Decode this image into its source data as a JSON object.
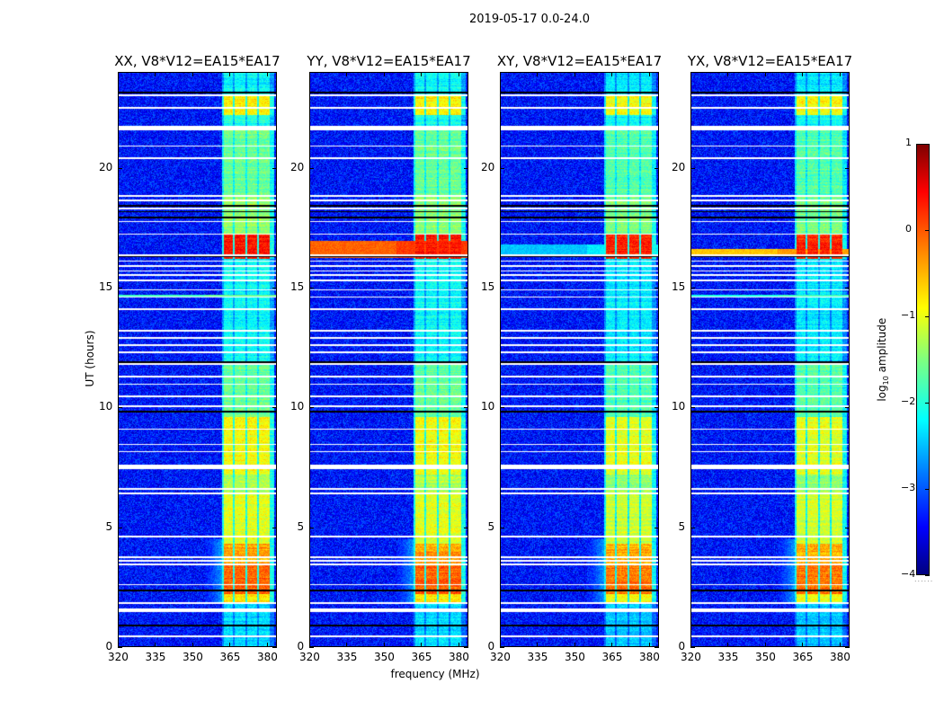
{
  "chart_data": {
    "type": "heatmap",
    "title": "2019-05-17 0.0-24.0",
    "xlabel": "frequency (MHz)",
    "ylabel": "UT (hours)",
    "xlim": [
      320,
      384
    ],
    "ylim": [
      0,
      24
    ],
    "xticks": [
      320,
      335,
      350,
      365,
      380
    ],
    "yticks": [
      0,
      5,
      10,
      15,
      20
    ],
    "colorbar": {
      "label_main": "log",
      "label_sub": "10",
      "label_rest": " amplitude",
      "vmin": -4,
      "vmax": 1,
      "ticks": [
        1,
        0,
        -1,
        -2,
        -3,
        -4
      ],
      "colormap": "jet"
    },
    "background_level": -3.3,
    "signal_band_mhz": [
      362,
      383
    ],
    "subbands_mhz": [
      [
        362.5,
        366.3
      ],
      [
        367,
        371.2
      ],
      [
        372,
        376.2
      ],
      [
        376.8,
        381
      ]
    ],
    "band_profile": [
      [
        0,
        1.8,
        -2.3
      ],
      [
        1.8,
        2.2,
        -0.8
      ],
      [
        2.2,
        3.4,
        -0.1
      ],
      [
        3.4,
        4.3,
        -0.4
      ],
      [
        4.3,
        6.5,
        -1.0
      ],
      [
        6.5,
        7.2,
        -1.3
      ],
      [
        7.2,
        9.6,
        -0.9
      ],
      [
        9.6,
        11.8,
        -1.6
      ],
      [
        11.8,
        16.2,
        -2.1
      ],
      [
        16.2,
        17.2,
        0.3
      ],
      [
        17.2,
        18.8,
        -1.4
      ],
      [
        18.8,
        21.6,
        -1.6
      ],
      [
        21.6,
        22.2,
        -2.0
      ],
      [
        22.2,
        23.0,
        -0.8
      ],
      [
        23.0,
        24,
        -2.1
      ]
    ],
    "flagged_white_ut": [
      [
        23.0,
        23.06
      ],
      [
        22.48,
        22.54
      ],
      [
        21.55,
        21.75
      ],
      [
        20.88,
        20.94
      ],
      [
        20.38,
        20.44
      ],
      [
        18.8,
        18.86
      ],
      [
        18.6,
        18.66
      ],
      [
        18.28,
        18.34
      ],
      [
        17.72,
        17.78
      ],
      [
        17.2,
        17.26
      ],
      [
        16.32,
        16.38
      ],
      [
        16.08,
        16.14
      ],
      [
        15.88,
        15.94
      ],
      [
        15.66,
        15.72
      ],
      [
        15.5,
        15.56
      ],
      [
        15.26,
        15.32
      ],
      [
        14.88,
        14.94
      ],
      [
        14.58,
        14.64
      ],
      [
        14.08,
        14.14
      ],
      [
        13.16,
        13.22
      ],
      [
        12.86,
        12.92
      ],
      [
        12.56,
        12.62
      ],
      [
        12.26,
        12.32
      ],
      [
        11.78,
        11.86
      ],
      [
        11.26,
        11.32
      ],
      [
        10.94,
        11.0
      ],
      [
        10.44,
        10.5
      ],
      [
        10.02,
        10.08
      ],
      [
        9.06,
        9.12
      ],
      [
        8.42,
        8.48
      ],
      [
        8.12,
        8.18
      ],
      [
        7.42,
        7.62
      ],
      [
        6.58,
        6.64
      ],
      [
        6.38,
        6.44
      ],
      [
        4.58,
        4.64
      ],
      [
        3.73,
        3.79
      ],
      [
        3.58,
        3.64
      ],
      [
        3.43,
        3.49
      ],
      [
        2.58,
        2.64
      ],
      [
        1.8,
        1.86
      ],
      [
        1.45,
        1.62
      ],
      [
        0.42,
        0.48
      ]
    ],
    "flagged_black_ut": [
      [
        23.1,
        23.16
      ],
      [
        18.38,
        18.44
      ],
      [
        18.15,
        18.2
      ],
      [
        17.9,
        17.96
      ],
      [
        16.28,
        16.32
      ],
      [
        11.86,
        11.92
      ],
      [
        9.8,
        9.86
      ],
      [
        2.33,
        2.39
      ],
      [
        0.88,
        0.94
      ]
    ],
    "panels": [
      {
        "title": "XX, V8*V12=EA15*EA17",
        "broadband": [
          [
            14.62,
            14.7,
            -1.8
          ]
        ]
      },
      {
        "title": "YY, V8*V12=EA15*EA17",
        "broadband": [
          [
            16.25,
            16.95,
            -0.1
          ]
        ]
      },
      {
        "title": "XY, V8*V12=EA15*EA17",
        "broadband": [
          [
            16.3,
            16.8,
            -2.4
          ]
        ]
      },
      {
        "title": "YX, V8*V12=EA15*EA17",
        "broadband": [
          [
            16.3,
            16.6,
            -0.6
          ],
          [
            14.62,
            14.7,
            -2.0
          ]
        ]
      }
    ]
  }
}
